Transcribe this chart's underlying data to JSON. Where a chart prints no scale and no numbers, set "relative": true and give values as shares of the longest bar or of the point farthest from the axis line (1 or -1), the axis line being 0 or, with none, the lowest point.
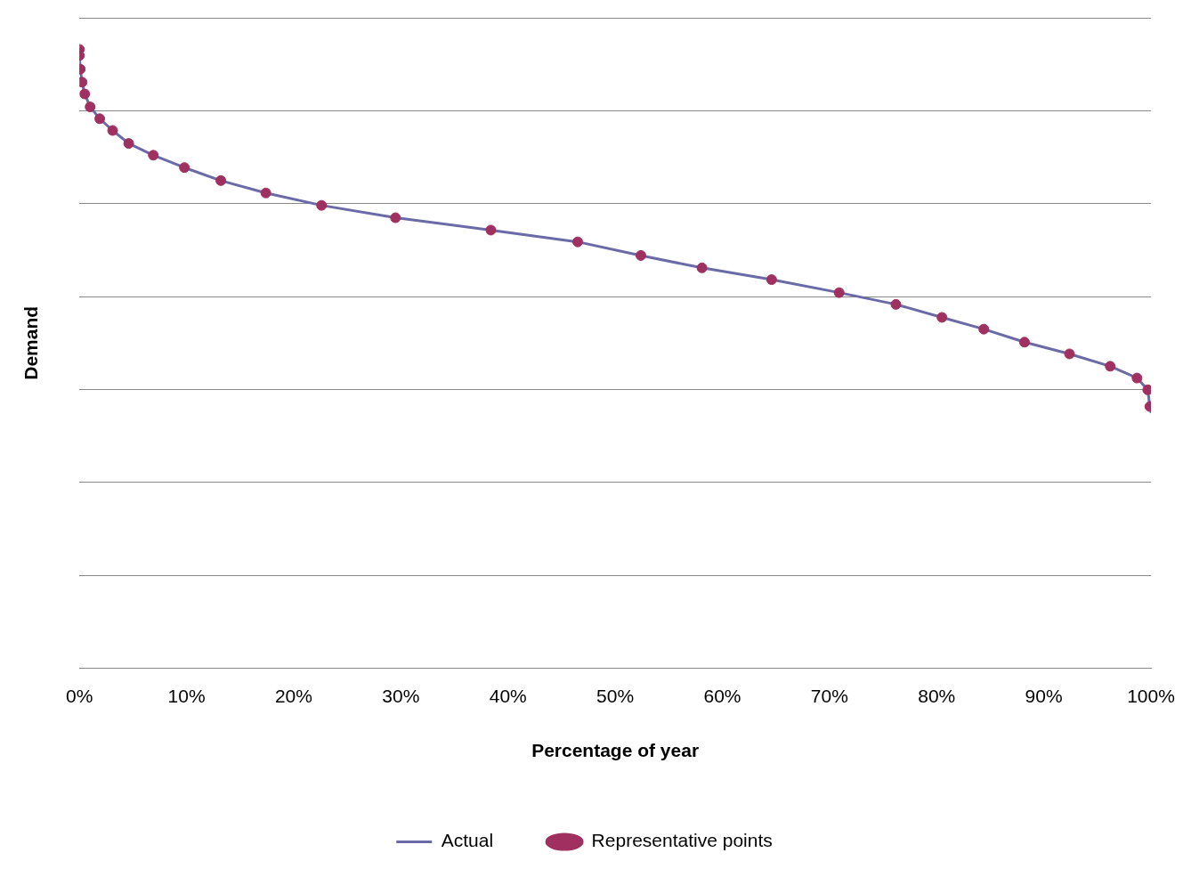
{
  "chart_data": {
    "type": "line",
    "xlabel": "Percentage of year",
    "ylabel": "Demand",
    "relative": true,
    "grid": "y",
    "legend": "bottom",
    "xlim": [
      0,
      100
    ],
    "xticks": [
      {
        "value": 0,
        "label": "0%"
      },
      {
        "value": 10,
        "label": "10%"
      },
      {
        "value": 20,
        "label": "20%"
      },
      {
        "value": 30,
        "label": "30%"
      },
      {
        "value": 40,
        "label": "40%"
      },
      {
        "value": 50,
        "label": "50%"
      },
      {
        "value": 60,
        "label": "60%"
      },
      {
        "value": 70,
        "label": "70%"
      },
      {
        "value": 80,
        "label": "80%"
      },
      {
        "value": 90,
        "label": "90%"
      },
      {
        "value": 100,
        "label": "100%"
      }
    ],
    "series": [
      {
        "name": "Actual",
        "type": "line",
        "marker": "none",
        "line_style": "solid",
        "color": "#6a6aa8",
        "x": [
          0,
          0,
          0.08,
          0.25,
          0.5,
          1.0,
          1.9,
          3.1,
          4.6,
          6.9,
          9.8,
          13.2,
          17.4,
          22.6,
          29.5,
          38.4,
          46.5,
          52.4,
          58.1,
          64.6,
          70.9,
          76.2,
          80.5,
          84.4,
          88.2,
          92.4,
          96.2,
          98.7,
          99.7,
          99.9,
          100
        ],
        "values": [
          1.0,
          0.99,
          0.968,
          0.947,
          0.928,
          0.907,
          0.888,
          0.869,
          0.848,
          0.829,
          0.809,
          0.788,
          0.768,
          0.748,
          0.728,
          0.708,
          0.689,
          0.667,
          0.647,
          0.628,
          0.607,
          0.588,
          0.567,
          0.548,
          0.527,
          0.508,
          0.488,
          0.469,
          0.45,
          0.423,
          0.414
        ]
      },
      {
        "name": "Representative points",
        "type": "scatter",
        "marker": "circle",
        "color": "#a0305f",
        "x": [
          0,
          0,
          0.08,
          0.25,
          0.5,
          1.0,
          1.9,
          3.1,
          4.6,
          6.9,
          9.8,
          13.2,
          17.4,
          22.6,
          29.5,
          38.4,
          46.5,
          52.4,
          58.1,
          64.6,
          70.9,
          76.2,
          80.5,
          84.4,
          88.2,
          92.4,
          96.2,
          98.7,
          99.7,
          99.9
        ],
        "values": [
          1.0,
          0.99,
          0.968,
          0.947,
          0.928,
          0.907,
          0.888,
          0.869,
          0.848,
          0.829,
          0.809,
          0.788,
          0.768,
          0.748,
          0.728,
          0.708,
          0.689,
          0.667,
          0.647,
          0.628,
          0.607,
          0.588,
          0.567,
          0.548,
          0.527,
          0.508,
          0.488,
          0.469,
          0.45,
          0.423
        ]
      }
    ]
  }
}
